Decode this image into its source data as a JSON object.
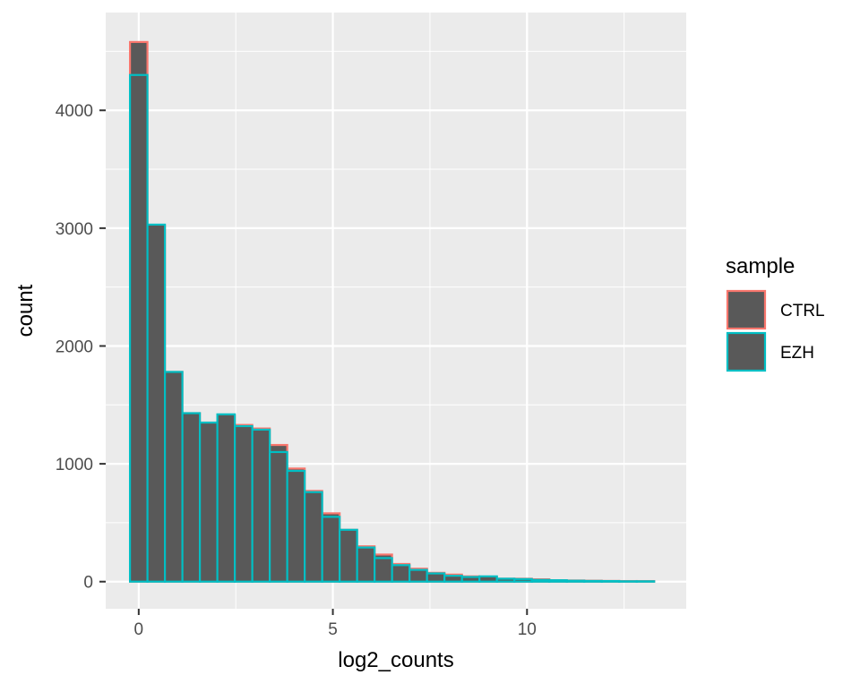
{
  "chart_data": {
    "type": "histogram",
    "xlabel": "log2_counts",
    "ylabel": "count",
    "x_ticks": [
      0,
      5,
      10
    ],
    "y_ticks": [
      0,
      1000,
      2000,
      3000,
      4000
    ],
    "xlim": [
      -0.85,
      14.1
    ],
    "ylim": [
      -230,
      4830
    ],
    "bin_width": 0.45,
    "bin_centers": [
      0.0,
      0.45,
      0.9,
      1.35,
      1.8,
      2.25,
      2.7,
      3.15,
      3.6,
      4.05,
      4.5,
      4.95,
      5.4,
      5.85,
      6.3,
      6.75,
      7.2,
      7.65,
      8.1,
      8.55,
      9.0,
      9.45,
      9.9,
      10.35,
      10.8,
      11.25,
      11.7,
      12.15,
      12.6,
      13.05
    ],
    "legend": {
      "title": "sample",
      "position": "right",
      "entries": [
        {
          "label": "CTRL",
          "color": "#F8766D"
        },
        {
          "label": "EZH",
          "color": "#00BFC4"
        }
      ]
    },
    "fill_color": "#595959",
    "grid": true,
    "panel_background": "#EBEBEB",
    "series": [
      {
        "name": "CTRL",
        "color": "#F8766D",
        "values": [
          4580,
          3020,
          1780,
          1430,
          1350,
          1410,
          1330,
          1300,
          1160,
          960,
          770,
          580,
          440,
          300,
          230,
          150,
          110,
          75,
          60,
          45,
          40,
          25,
          25,
          20,
          12,
          10,
          8,
          6,
          5,
          5
        ]
      },
      {
        "name": "EZH",
        "color": "#00BFC4",
        "values": [
          4300,
          3030,
          1780,
          1430,
          1350,
          1420,
          1320,
          1290,
          1100,
          940,
          760,
          550,
          440,
          290,
          200,
          140,
          100,
          70,
          50,
          40,
          45,
          25,
          22,
          15,
          12,
          8,
          6,
          5,
          3,
          3
        ]
      }
    ]
  }
}
